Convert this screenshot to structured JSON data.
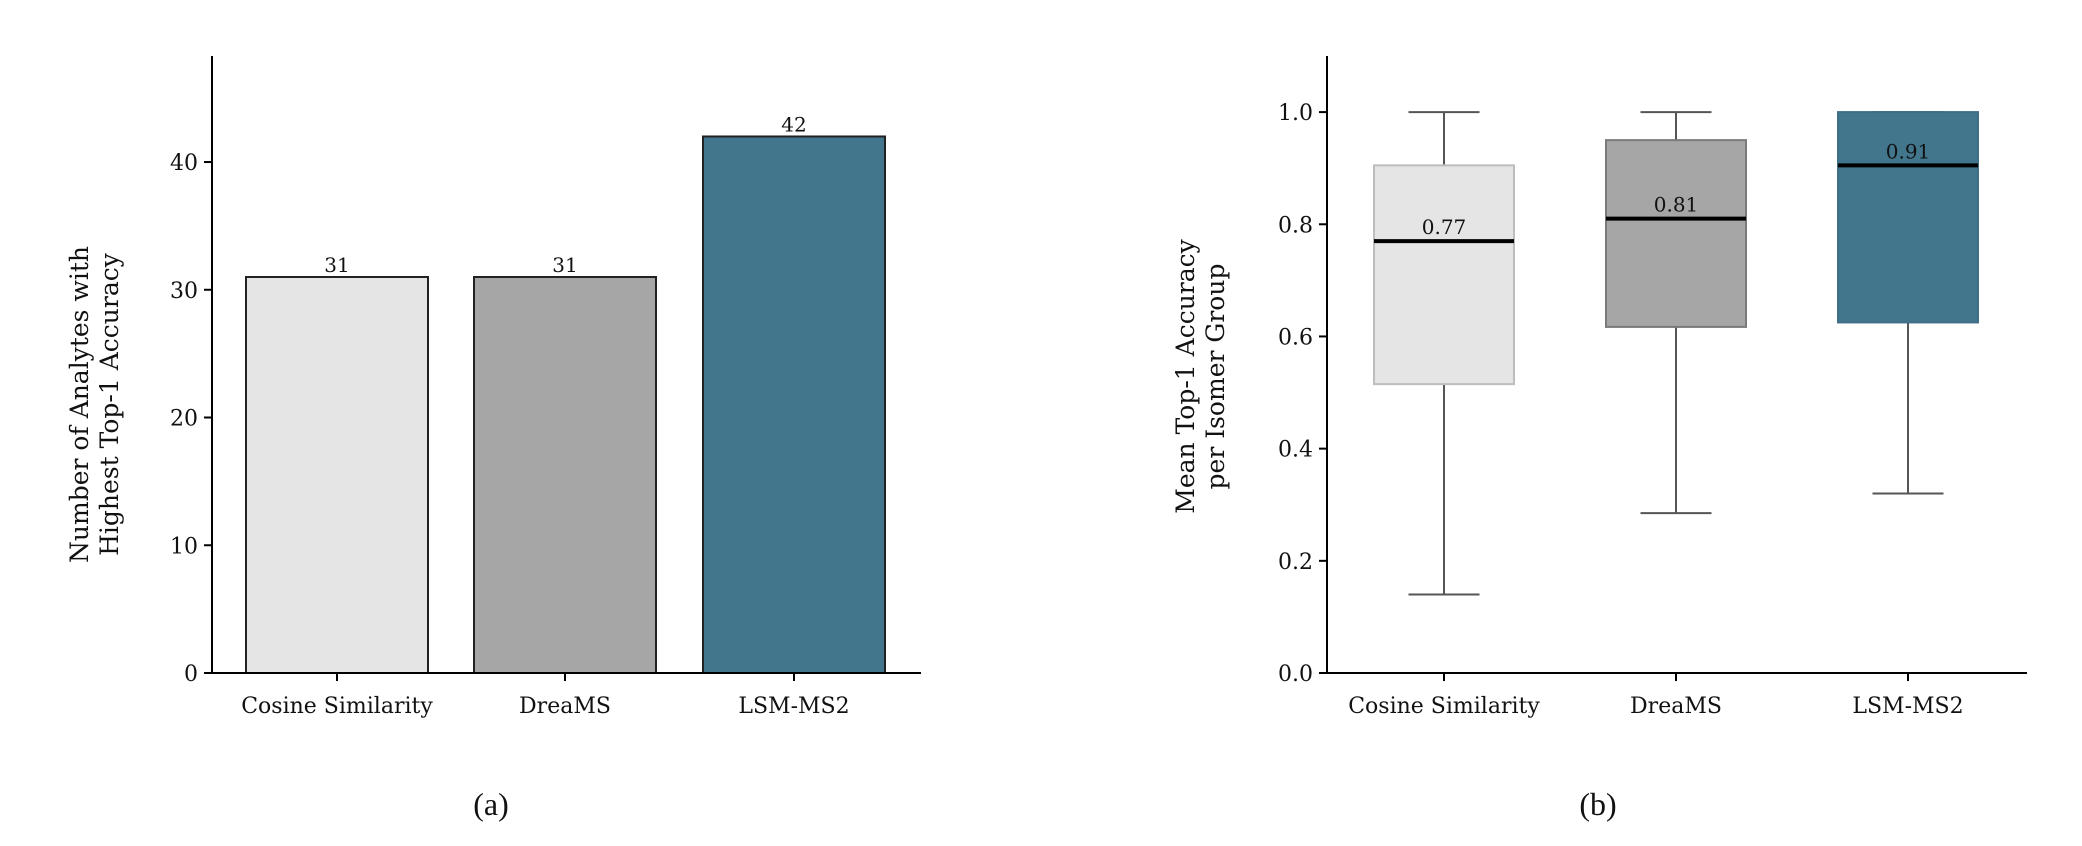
{
  "chart_data": [
    {
      "type": "bar",
      "panel_label": "(a)",
      "categories": [
        "Cosine Similarity",
        "DreaMS",
        "LSM-MS2"
      ],
      "values": [
        31,
        31,
        42
      ],
      "data_labels": [
        "31",
        "31",
        "42"
      ],
      "colors": [
        "#e5e5e5",
        "#a6a6a6",
        "#41768d"
      ],
      "ylabel": [
        "Number of Analytes with",
        "Highest Top-1 Accuracy"
      ],
      "xlabel": "",
      "ylim": [
        0,
        48.3
      ],
      "yticks": [
        0,
        10,
        20,
        30,
        40
      ],
      "ytick_labels": [
        "0",
        "10",
        "20",
        "30",
        "40"
      ],
      "grid": false
    },
    {
      "type": "box",
      "panel_label": "(b)",
      "categories": [
        "Cosine Similarity",
        "DreaMS",
        "LSM-MS2"
      ],
      "boxes": [
        {
          "whisker_low": 0.14,
          "q1": 0.515,
          "median": 0.77,
          "q3": 0.905,
          "whisker_high": 1.0,
          "median_label": "0.77"
        },
        {
          "whisker_low": 0.285,
          "q1": 0.617,
          "median": 0.81,
          "q3": 0.95,
          "whisker_high": 1.0,
          "median_label": "0.81"
        },
        {
          "whisker_low": 0.32,
          "q1": 0.625,
          "median": 0.905,
          "q3": 1.0,
          "whisker_high": 1.0,
          "median_label": "0.91"
        }
      ],
      "colors": [
        "#e5e5e5",
        "#a6a6a6",
        "#41768d"
      ],
      "edge_colors": [
        "#bdbdbd",
        "#7a7a7a",
        "#3f6f86"
      ],
      "ylabel": [
        "Mean Top-1 Accuracy",
        "per Isomer Group"
      ],
      "xlabel": "",
      "ylim": [
        0,
        1.1
      ],
      "yticks": [
        0,
        0.2,
        0.4,
        0.6,
        0.8,
        1.0
      ],
      "ytick_labels": [
        "0.0",
        "0.2",
        "0.4",
        "0.6",
        "0.8",
        "1.0"
      ],
      "grid": false
    }
  ]
}
